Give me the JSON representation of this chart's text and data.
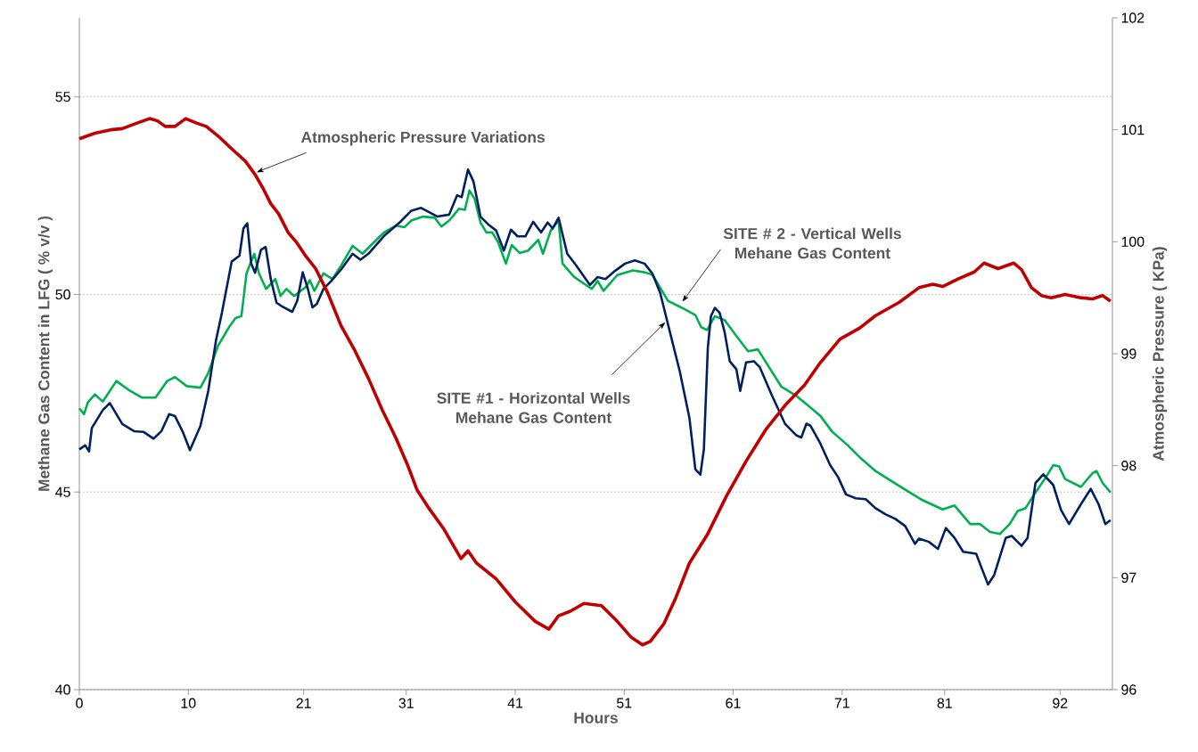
{
  "chart_data": {
    "type": "line",
    "xlabel": "Hours",
    "ylabel": "Methane Gas Content in LFG ( % v/v )",
    "y2label": "Atmospheric Pressure ( KPa)",
    "xlim": [
      0,
      96.7
    ],
    "xticks": [
      {
        "value": 0,
        "label": "0"
      },
      {
        "value": 10.2,
        "label": "10"
      },
      {
        "value": 21,
        "label": "21"
      },
      {
        "value": 30.6,
        "label": "31"
      },
      {
        "value": 40.8,
        "label": "41"
      },
      {
        "value": 51,
        "label": "51"
      },
      {
        "value": 61.2,
        "label": "61"
      },
      {
        "value": 71.4,
        "label": "71"
      },
      {
        "value": 81,
        "label": "81"
      },
      {
        "value": 91.8,
        "label": "92"
      }
    ],
    "ylim": [
      40,
      57
    ],
    "yticks": [
      40,
      45,
      50,
      55
    ],
    "y2lim": [
      96,
      102
    ],
    "y2ticks": [
      96,
      97,
      98,
      99,
      100,
      101,
      102
    ],
    "grid": "y",
    "marker": "none",
    "series": [
      {
        "color": "#c00000",
        "axis": "y2",
        "x": [
          0,
          1.46,
          2.93,
          4.02,
          5.12,
          6.58,
          7.31,
          8.04,
          8.96,
          9.95,
          10.97,
          11.88,
          13.16,
          14.26,
          15.54,
          16.45,
          17.18,
          17.92,
          18.65,
          19.56,
          20.29,
          21.21,
          22.12,
          23.22,
          24.5,
          25.78,
          27.06,
          28.34,
          29.62,
          30.71,
          31.63,
          32.72,
          34.15,
          35.72,
          36.38,
          37.18,
          39.01,
          40.84,
          42.67,
          43.95,
          44.86,
          45.96,
          47.24,
          48.88,
          50.35,
          51.63,
          52.72,
          53.45,
          54.73,
          55.83,
          57.11,
          58.76,
          60.58,
          62.41,
          64.24,
          66.07,
          67.88,
          69.36,
          71.2,
          73.05,
          74.53,
          76.75,
          78.6,
          79.89,
          80.81,
          82.29,
          83.77,
          84.69,
          85.99,
          87.46,
          88.2,
          89.13,
          90.05,
          90.97,
          92.27,
          93.75,
          94.85,
          95.78,
          96.52
        ],
        "values": [
          100.92,
          100.97,
          101.0,
          101.01,
          101.05,
          101.1,
          101.08,
          101.03,
          101.03,
          101.1,
          101.06,
          101.03,
          100.93,
          100.83,
          100.72,
          100.6,
          100.48,
          100.34,
          100.25,
          100.08,
          100.0,
          99.87,
          99.76,
          99.55,
          99.25,
          99.03,
          98.78,
          98.5,
          98.25,
          98.01,
          97.78,
          97.62,
          97.43,
          97.17,
          97.24,
          97.13,
          96.99,
          96.78,
          96.61,
          96.54,
          96.66,
          96.7,
          96.77,
          96.75,
          96.61,
          96.47,
          96.4,
          96.43,
          96.59,
          96.82,
          97.13,
          97.38,
          97.73,
          98.04,
          98.32,
          98.54,
          98.72,
          98.92,
          99.13,
          99.23,
          99.34,
          99.46,
          99.59,
          99.62,
          99.6,
          99.67,
          99.73,
          99.81,
          99.76,
          99.81,
          99.75,
          99.59,
          99.52,
          99.5,
          99.53,
          99.5,
          99.49,
          99.52,
          99.47
        ]
      },
      {
        "color": "#00b050",
        "x": [
          0,
          0.44,
          0.8,
          1.46,
          2.19,
          3.47,
          4.75,
          5.85,
          7.13,
          8.23,
          8.96,
          10.05,
          11.33,
          12.07,
          12.98,
          14.08,
          14.62,
          15.17,
          15.65,
          15.9,
          16.38,
          16.82,
          17.48,
          18.35,
          18.83,
          19.38,
          20.11,
          21.21,
          21.57,
          22.01,
          22.85,
          23.69,
          24.5,
          25.58,
          26.51,
          27.61,
          28.52,
          29.62,
          30.42,
          31.08,
          32.18,
          33.27,
          33.89,
          34.62,
          35.54,
          36.09,
          36.52,
          37.0,
          37.55,
          38.1,
          38.65,
          39.19,
          39.93,
          40.47,
          41.21,
          42.01,
          42.96,
          43.4,
          44.13,
          44.86,
          45.23,
          46.32,
          47.97,
          48.52,
          49.07,
          50.35,
          51.81,
          52.91,
          53.64,
          55.1,
          56.56,
          57.66,
          58.21,
          58.76,
          59.49,
          60.4,
          61.5,
          62.6,
          63.51,
          64.42,
          65.7,
          67.14,
          68.25,
          69.36,
          70.46,
          71.94,
          73.05,
          74.53,
          76.01,
          77.48,
          78.96,
          80.81,
          81.92,
          83.39,
          84.32,
          85.25,
          86.17,
          87.09,
          87.83,
          88.57,
          89.5,
          90.49,
          91.16,
          91.71,
          92.27,
          93.75,
          94.85,
          95.22,
          95.78,
          96.52
        ],
        "values": [
          47.12,
          46.97,
          47.27,
          47.47,
          47.29,
          47.81,
          47.56,
          47.39,
          47.39,
          47.81,
          47.91,
          47.68,
          47.64,
          48.01,
          48.7,
          49.2,
          49.4,
          49.45,
          50.53,
          50.71,
          51.03,
          50.53,
          50.14,
          50.39,
          49.96,
          50.14,
          49.96,
          50.19,
          50.36,
          50.09,
          50.53,
          50.39,
          50.73,
          51.23,
          51.03,
          51.33,
          51.57,
          51.74,
          51.7,
          51.87,
          51.97,
          51.94,
          51.72,
          51.87,
          52.17,
          52.14,
          52.63,
          52.42,
          51.82,
          51.57,
          51.57,
          51.33,
          50.78,
          51.25,
          51.05,
          51.11,
          51.38,
          51.03,
          51.62,
          51.87,
          50.78,
          50.44,
          50.14,
          50.34,
          50.09,
          50.49,
          50.61,
          50.56,
          50.5,
          49.84,
          49.64,
          49.48,
          49.17,
          49.1,
          49.45,
          49.35,
          48.95,
          48.56,
          48.61,
          48.22,
          47.67,
          47.43,
          47.18,
          46.93,
          46.53,
          46.18,
          45.88,
          45.53,
          45.28,
          45.03,
          44.79,
          44.56,
          44.66,
          44.19,
          44.19,
          43.99,
          43.94,
          44.19,
          44.52,
          44.59,
          44.99,
          45.38,
          45.68,
          45.65,
          45.33,
          45.13,
          45.48,
          45.53,
          45.23,
          44.99
        ]
      },
      {
        "color": "#002060",
        "x": [
          0,
          0.55,
          0.91,
          1.17,
          2.19,
          2.85,
          4.02,
          5.12,
          6.03,
          6.95,
          7.68,
          8.41,
          8.96,
          9.69,
          10.35,
          11.33,
          12.07,
          12.8,
          13.35,
          14.26,
          14.99,
          15.36,
          15.72,
          16.09,
          16.45,
          17.0,
          17.44,
          17.92,
          18.46,
          19.01,
          19.93,
          20.4,
          20.91,
          21.39,
          21.83,
          22.23,
          22.85,
          23.58,
          24.5,
          25.58,
          26.31,
          27.06,
          28.52,
          29.98,
          31.08,
          31.99,
          33.53,
          34.62,
          35.36,
          35.79,
          36.38,
          36.89,
          37.55,
          38.28,
          39.01,
          39.74,
          40.4,
          41.02,
          41.75,
          42.48,
          43.22,
          43.84,
          44.31,
          44.86,
          45.67,
          46.51,
          47.79,
          48.52,
          49.25,
          50.16,
          51.08,
          51.99,
          52.91,
          53.64,
          54.37,
          55.28,
          56.2,
          57.11,
          57.66,
          58.13,
          58.46,
          58.83,
          59.12,
          59.49,
          59.93,
          60.4,
          60.88,
          61.5,
          61.86,
          62.41,
          63.14,
          63.69,
          64.79,
          66.07,
          67.14,
          67.58,
          68.06,
          68.43,
          69.36,
          70.28,
          71.02,
          71.76,
          72.68,
          73.61,
          74.53,
          75.45,
          76.38,
          77.3,
          78.22,
          78.59,
          79.52,
          80.37,
          81.11,
          81.92,
          82.73,
          83.95,
          84.51,
          85.06,
          85.62,
          86.72,
          87.28,
          88.2,
          88.76,
          89.5,
          90.23,
          91.16,
          91.9,
          92.64,
          93.75,
          94.67,
          95.41,
          96.04,
          96.52
        ],
        "values": [
          46.08,
          46.18,
          46.03,
          46.62,
          47.07,
          47.25,
          46.72,
          46.54,
          46.52,
          46.35,
          46.54,
          46.97,
          46.92,
          46.52,
          46.06,
          46.67,
          47.56,
          48.85,
          49.54,
          50.83,
          50.98,
          51.67,
          51.8,
          50.78,
          50.55,
          51.13,
          51.2,
          50.39,
          49.79,
          49.69,
          49.56,
          49.84,
          50.56,
          50.14,
          49.67,
          49.76,
          50.14,
          50.34,
          50.63,
          51.03,
          50.88,
          51.03,
          51.48,
          51.82,
          52.12,
          52.19,
          51.97,
          52.02,
          52.51,
          52.46,
          53.16,
          52.86,
          51.97,
          51.77,
          51.62,
          51.11,
          51.64,
          51.47,
          51.47,
          51.84,
          51.57,
          51.82,
          51.67,
          51.94,
          51.03,
          50.73,
          50.24,
          50.44,
          50.39,
          50.6,
          50.78,
          50.86,
          50.78,
          50.53,
          50.04,
          49.05,
          48.06,
          46.87,
          45.58,
          45.44,
          46.08,
          48.65,
          49.45,
          49.66,
          49.54,
          49.05,
          48.31,
          48.11,
          47.56,
          48.28,
          48.31,
          48.16,
          47.47,
          46.72,
          46.43,
          46.38,
          46.73,
          46.68,
          46.23,
          45.68,
          45.38,
          44.94,
          44.84,
          44.82,
          44.59,
          44.44,
          44.32,
          44.14,
          43.69,
          43.82,
          43.74,
          43.56,
          44.09,
          43.84,
          43.49,
          43.44,
          43.04,
          42.66,
          42.89,
          43.84,
          43.89,
          43.64,
          43.84,
          45.23,
          45.45,
          45.18,
          44.54,
          44.19,
          44.69,
          45.08,
          44.69,
          44.19,
          44.29
        ]
      }
    ],
    "annotations": [
      {
        "text": "Atmospheric Pressure Variations",
        "x": 16.57,
        "y": 53.09
      },
      {
        "text": "SITE # 2 - Vertical Wells Mehane Gas Content",
        "x": 56.44,
        "y": 49.81
      },
      {
        "text": "SITE #1 - Horizontal Wells Mehane Gas Content",
        "x": 54.86,
        "y": 49.3
      }
    ]
  }
}
